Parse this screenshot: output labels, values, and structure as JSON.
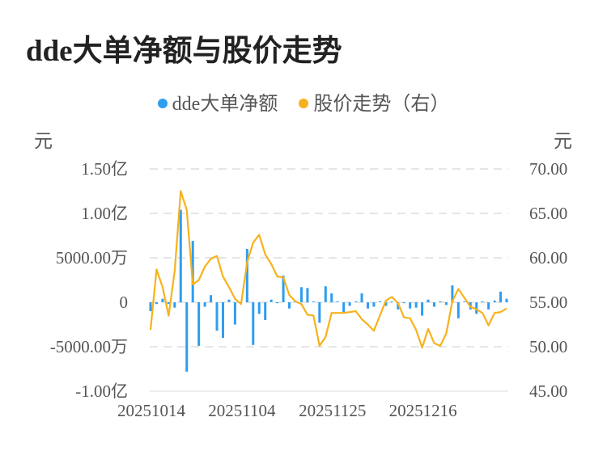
{
  "title": "dde大单净额与股价走势",
  "chart_data": {
    "type": "bar+line",
    "title": "dde大单净额与股价走势",
    "left_unit": "元",
    "right_unit": "元",
    "left_ticks": [
      {
        "value": 150000000,
        "label": "1.50亿"
      },
      {
        "value": 100000000,
        "label": "1.00亿"
      },
      {
        "value": 50000000,
        "label": "5000.00万"
      },
      {
        "value": 0,
        "label": "0"
      },
      {
        "value": -50000000,
        "label": "-5000.00万"
      },
      {
        "value": -100000000,
        "label": "-1.00亿"
      }
    ],
    "right_ticks": [
      {
        "value": 70,
        "label": "70.00"
      },
      {
        "value": 65,
        "label": "65.00"
      },
      {
        "value": 60,
        "label": "60.00"
      },
      {
        "value": 55,
        "label": "55.00"
      },
      {
        "value": 50,
        "label": "50.00"
      },
      {
        "value": 45,
        "label": "45.00"
      }
    ],
    "ylim_left": [
      -100000000,
      150000000
    ],
    "ylim_right": [
      45,
      70
    ],
    "grid": true,
    "legend_position": "top",
    "x_ticks": [
      {
        "index": 0,
        "label": "20251014"
      },
      {
        "index": 15,
        "label": "20251104"
      },
      {
        "index": 30,
        "label": "20251125"
      },
      {
        "index": 45,
        "label": "20251216"
      }
    ],
    "series": [
      {
        "name": "dde大单净额",
        "type": "bar",
        "axis": "left",
        "color": "#2e9df0",
        "values_yi": [
          -0.1,
          -0.02,
          0.04,
          -0.02,
          -0.06,
          1.04,
          -0.78,
          0.69,
          -0.49,
          -0.05,
          0.08,
          -0.32,
          -0.4,
          0.03,
          -0.25,
          -0.01,
          0.6,
          -0.48,
          -0.13,
          -0.2,
          0.03,
          -0.01,
          0.3,
          -0.07,
          0.01,
          0.17,
          0.16,
          0.01,
          -0.23,
          0.18,
          0.1,
          0.01,
          -0.11,
          -0.04,
          0.01,
          0.1,
          -0.07,
          -0.05,
          0.01,
          -0.04,
          0.01,
          -0.08,
          -0.01,
          -0.07,
          -0.06,
          -0.15,
          0.03,
          -0.05,
          0.01,
          -0.03,
          0.19,
          -0.18,
          0.01,
          -0.08,
          -0.13,
          0.01,
          -0.08,
          0.02,
          0.12,
          0.04
        ]
      },
      {
        "name": "股价走势（右）",
        "type": "line",
        "axis": "right",
        "color": "#f7b21b",
        "values": [
          51.9,
          58.7,
          56.7,
          53.5,
          58.5,
          67.5,
          65.4,
          57.0,
          57.5,
          59.0,
          59.9,
          60.2,
          57.9,
          56.7,
          55.4,
          54.8,
          59.5,
          61.7,
          62.6,
          60.4,
          59.3,
          57.9,
          57.8,
          55.8,
          55.1,
          54.8,
          53.6,
          53.5,
          50.1,
          51.1,
          53.8,
          53.8,
          53.8,
          53.9,
          54.0,
          53.1,
          52.5,
          51.8,
          53.5,
          55.2,
          55.6,
          54.9,
          53.3,
          53.2,
          51.9,
          49.9,
          52.0,
          50.4,
          50.1,
          51.5,
          55.1,
          56.5,
          55.5,
          54.5,
          54.2,
          53.8,
          52.4,
          53.8,
          53.9,
          54.3
        ]
      }
    ]
  }
}
